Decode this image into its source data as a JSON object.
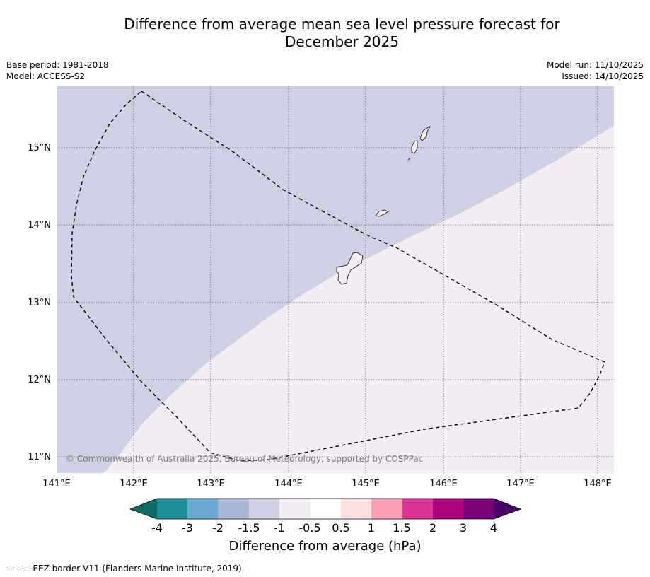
{
  "title_line1": "Difference from average mean sea level pressure forecast for",
  "title_line2": "December 2025",
  "meta_left": {
    "base_period": "Base period: 1981-2018",
    "model": "Model: ACCESS-S2"
  },
  "meta_right": {
    "model_run": "Model run: 11/10/2025",
    "issued": "Issued: 14/10/2025"
  },
  "map": {
    "lat_labels": [
      "15°N",
      "14°N",
      "13°N",
      "12°N",
      "11°N"
    ],
    "lon_labels": [
      "141°E",
      "142°E",
      "143°E",
      "144°E",
      "145°E",
      "146°E",
      "147°E",
      "148°E"
    ],
    "copyright": "© Commonwealth of Australia 2025, Bureau of Meteorology, supported by COSPPac",
    "region_colors": {
      "minus1_to_minus1_5": "#cfd0e4",
      "minus0_5_to_minus1": "#f3ecf5"
    }
  },
  "colorbar": {
    "labels": [
      "-4",
      "-3",
      "-2",
      "-1.5",
      "-1",
      "-0.5",
      "0.5",
      "1",
      "1.5",
      "2",
      "3",
      "4"
    ],
    "colors": [
      "#0b6c64",
      "#1e8e98",
      "#6aaad2",
      "#a9b8d4",
      "#cfd0e4",
      "#f3ecf5",
      "#ffffff",
      "#fde0dd",
      "#fa9fb5",
      "#dd3497",
      "#ae017e",
      "#7a0177",
      "#49006a"
    ],
    "title": "Difference from average (hPa)"
  },
  "footer": "--  --  -- EEZ border V11 (Flanders Marine Institute, 2019)."
}
